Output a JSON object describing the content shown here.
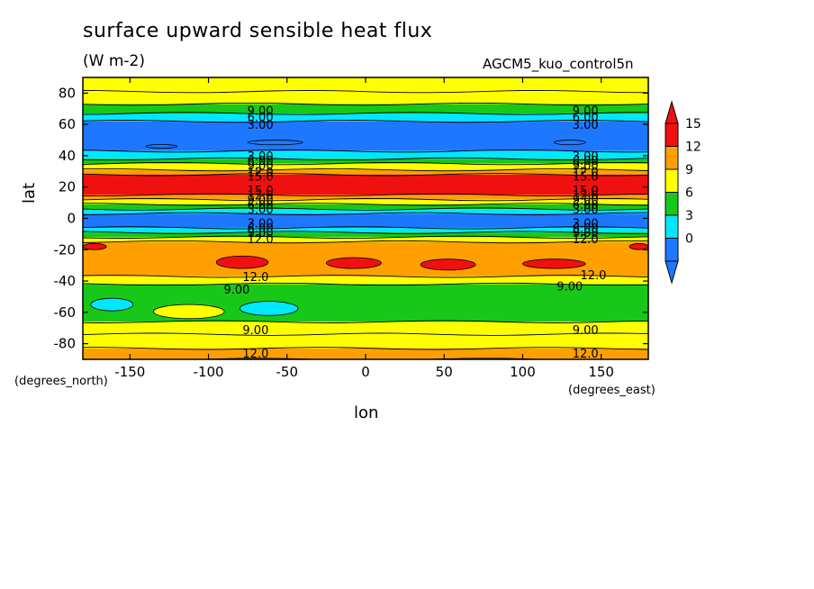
{
  "chart_data": {
    "type": "heatmap",
    "title": "surface upward sensible heat flux",
    "units": "(W m-2)",
    "dataset": "AGCM5_kuo_control5n",
    "xlabel": "lon",
    "ylabel": "lat",
    "x_units": "(degrees_east)",
    "y_units": "(degrees_north)",
    "xlim": [
      -180,
      180
    ],
    "ylim": [
      -90,
      90
    ],
    "x_ticks": [
      -150,
      -100,
      -50,
      0,
      50,
      100,
      150
    ],
    "y_ticks": [
      -80,
      -60,
      -40,
      -20,
      0,
      20,
      40,
      60,
      80
    ],
    "colorbar": {
      "levels": [
        0,
        3,
        6,
        9,
        12,
        15
      ],
      "labels": [
        "0",
        "3",
        "6",
        "9",
        "12",
        "15"
      ],
      "colors": [
        "#1e78ff",
        "#00e8ff",
        "#18c818",
        "#ffff00",
        "#ffa000",
        "#f01010"
      ],
      "extend": "both"
    },
    "zonal_bands": [
      {
        "lat": [
          81,
          90
        ],
        "value": 10
      },
      {
        "lat": [
          73,
          81
        ],
        "value": 9.5
      },
      {
        "lat": [
          67,
          73
        ],
        "value": 7.5
      },
      {
        "lat": [
          62,
          67
        ],
        "value": 4.5
      },
      {
        "lat": [
          43,
          62
        ],
        "value": 1.5
      },
      {
        "lat": [
          38,
          43
        ],
        "value": 4.5
      },
      {
        "lat": [
          35,
          38
        ],
        "value": 7.5
      },
      {
        "lat": [
          31,
          35
        ],
        "value": 10.5
      },
      {
        "lat": [
          28,
          31
        ],
        "value": 13.5
      },
      {
        "lat": [
          15,
          28
        ],
        "value": 16
      },
      {
        "lat": [
          12,
          15
        ],
        "value": 13.5
      },
      {
        "lat": [
          9,
          12
        ],
        "value": 10.5
      },
      {
        "lat": [
          6,
          9
        ],
        "value": 7.5
      },
      {
        "lat": [
          3,
          6
        ],
        "value": 4.5
      },
      {
        "lat": [
          -6,
          3
        ],
        "value": 1.5
      },
      {
        "lat": [
          -9,
          -6
        ],
        "value": 4.5
      },
      {
        "lat": [
          -12,
          -9
        ],
        "value": 7.5
      },
      {
        "lat": [
          -15,
          -12
        ],
        "value": 10.5
      },
      {
        "lat": [
          -37,
          -15
        ],
        "value": 13.5
      },
      {
        "lat": [
          -42,
          -37
        ],
        "value": 10.5
      },
      {
        "lat": [
          -66,
          -42
        ],
        "value": 7.5
      },
      {
        "lat": [
          -74,
          -66
        ],
        "value": 10.5
      },
      {
        "lat": [
          -83,
          -74
        ],
        "value": 10.5
      },
      {
        "lat": [
          -90,
          -83
        ],
        "value": 13.5
      }
    ],
    "anomalies": [
      {
        "lon": [
          -95,
          -62
        ],
        "lat": [
          -32,
          -24
        ],
        "value": 16
      },
      {
        "lon": [
          -25,
          10
        ],
        "lat": [
          -32,
          -25
        ],
        "value": 16
      },
      {
        "lon": [
          35,
          70
        ],
        "lat": [
          -33,
          -26
        ],
        "value": 16
      },
      {
        "lon": [
          100,
          140
        ],
        "lat": [
          -32,
          -26
        ],
        "value": 16
      },
      {
        "lon": [
          -180,
          -165
        ],
        "lat": [
          -20,
          -16
        ],
        "value": 16
      },
      {
        "lon": [
          168,
          180
        ],
        "lat": [
          -20,
          -16
        ],
        "value": 16
      },
      {
        "lon": [
          -175,
          -148
        ],
        "lat": [
          -59,
          -51
        ],
        "value": 4.5
      },
      {
        "lon": [
          -80,
          -43
        ],
        "lat": [
          -62,
          -53
        ],
        "value": 4.5
      },
      {
        "lon": [
          -135,
          -90
        ],
        "lat": [
          -64,
          -55
        ],
        "value": 10.5
      },
      {
        "lon": [
          120,
          140
        ],
        "lat": [
          50,
          47
        ],
        "value": -1
      },
      {
        "lon": [
          -75,
          -40
        ],
        "lat": [
          50,
          47
        ],
        "value": -1
      },
      {
        "lon": [
          -140,
          -120
        ],
        "lat": [
          47,
          45
        ],
        "value": -1
      }
    ],
    "contour_labels": [
      {
        "text": "9.00",
        "lon": -67,
        "lat": 69
      },
      {
        "text": "6.00",
        "lon": -67,
        "lat": 65
      },
      {
        "text": "3.00",
        "lon": -67,
        "lat": 60
      },
      {
        "text": "3.00",
        "lon": -67,
        "lat": 40
      },
      {
        "text": "6.00",
        "lon": -67,
        "lat": 37
      },
      {
        "text": "9.00",
        "lon": -67,
        "lat": 34
      },
      {
        "text": "12.0",
        "lon": -67,
        "lat": 30
      },
      {
        "text": "15.0",
        "lon": -67,
        "lat": 27
      },
      {
        "text": "15.0",
        "lon": -67,
        "lat": 18
      },
      {
        "text": "12.0",
        "lon": -67,
        "lat": 15
      },
      {
        "text": "9.00",
        "lon": -67,
        "lat": 12
      },
      {
        "text": "6.00",
        "lon": -67,
        "lat": 9
      },
      {
        "text": "3.00",
        "lon": -67,
        "lat": 6
      },
      {
        "text": "3.00",
        "lon": -67,
        "lat": -3
      },
      {
        "text": "6.00",
        "lon": -67,
        "lat": -6
      },
      {
        "text": "9.00",
        "lon": -67,
        "lat": -9
      },
      {
        "text": "12.0",
        "lon": -67,
        "lat": -13
      },
      {
        "text": "12.0",
        "lon": -70,
        "lat": -37
      },
      {
        "text": "9.00",
        "lon": -82,
        "lat": -45
      },
      {
        "text": "9.00",
        "lon": -70,
        "lat": -71
      },
      {
        "text": "12.0",
        "lon": -70,
        "lat": -86
      },
      {
        "text": "9.00",
        "lon": 140,
        "lat": 69
      },
      {
        "text": "6.00",
        "lon": 140,
        "lat": 65
      },
      {
        "text": "3.00",
        "lon": 140,
        "lat": 60
      },
      {
        "text": "3.00",
        "lon": 140,
        "lat": 40
      },
      {
        "text": "6.00",
        "lon": 140,
        "lat": 37
      },
      {
        "text": "9.00",
        "lon": 140,
        "lat": 34
      },
      {
        "text": "12.0",
        "lon": 140,
        "lat": 30
      },
      {
        "text": "15.0",
        "lon": 140,
        "lat": 27
      },
      {
        "text": "15.0",
        "lon": 140,
        "lat": 18
      },
      {
        "text": "12.0",
        "lon": 140,
        "lat": 15
      },
      {
        "text": "9.00",
        "lon": 140,
        "lat": 12
      },
      {
        "text": "6.00",
        "lon": 140,
        "lat": 9
      },
      {
        "text": "3.00",
        "lon": 140,
        "lat": 6
      },
      {
        "text": "3.00",
        "lon": 140,
        "lat": -3
      },
      {
        "text": "6.00",
        "lon": 140,
        "lat": -6
      },
      {
        "text": "9.00",
        "lon": 140,
        "lat": -9
      },
      {
        "text": "12.0",
        "lon": 140,
        "lat": -13
      },
      {
        "text": "12.0",
        "lon": 145,
        "lat": -36
      },
      {
        "text": "9.00",
        "lon": 130,
        "lat": -43
      },
      {
        "text": "9.00",
        "lon": 140,
        "lat": -71
      },
      {
        "text": "12.0",
        "lon": 140,
        "lat": -86
      }
    ]
  }
}
